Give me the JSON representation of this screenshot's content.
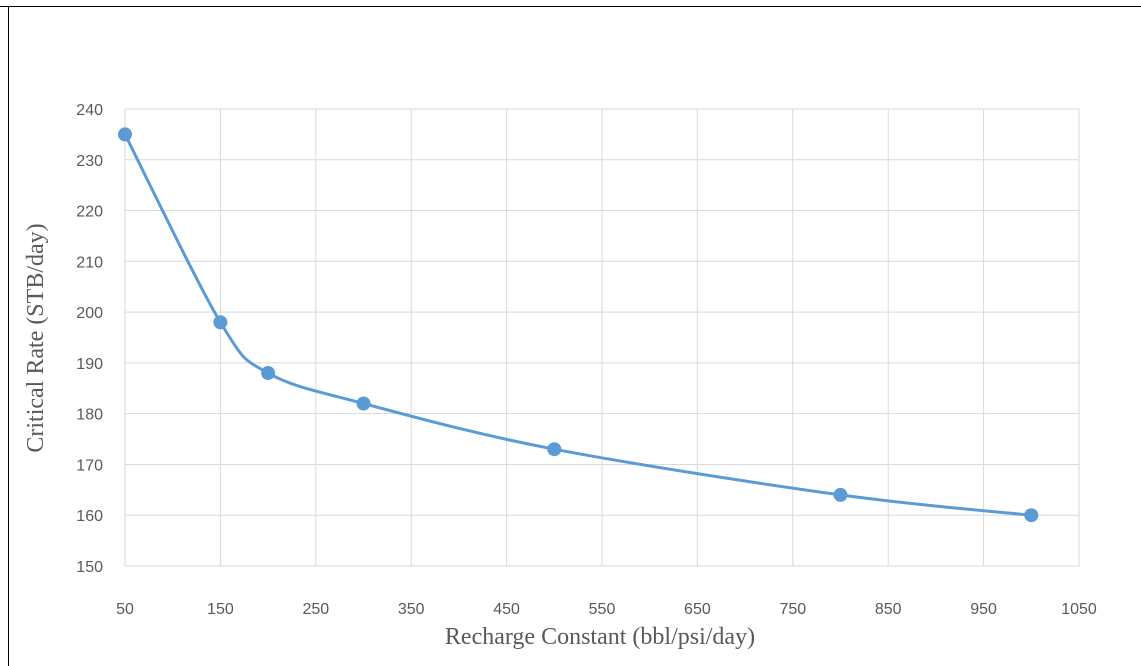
{
  "chart_data": {
    "type": "line",
    "title": "",
    "xlabel": "Recharge Constant (bbl/psi/day)",
    "ylabel": "Critical Rate (STB/day)",
    "xlim": [
      50,
      1050
    ],
    "ylim": [
      150,
      240
    ],
    "x_ticks": [
      "50",
      "150",
      "250",
      "350",
      "450",
      "550",
      "650",
      "750",
      "850",
      "950",
      "1050"
    ],
    "y_ticks": [
      "150",
      "160",
      "170",
      "180",
      "190",
      "200",
      "210",
      "220",
      "230",
      "240"
    ],
    "grid": true,
    "smooth": true,
    "series": [
      {
        "x": [
          50,
          150,
          200,
          300,
          500,
          800,
          1000
        ],
        "y": [
          235,
          198,
          188,
          182,
          173,
          164,
          160
        ]
      }
    ],
    "colors": {
      "series": "#5B9BD5",
      "grid": "#D9D9D9",
      "text": "#595959"
    }
  }
}
